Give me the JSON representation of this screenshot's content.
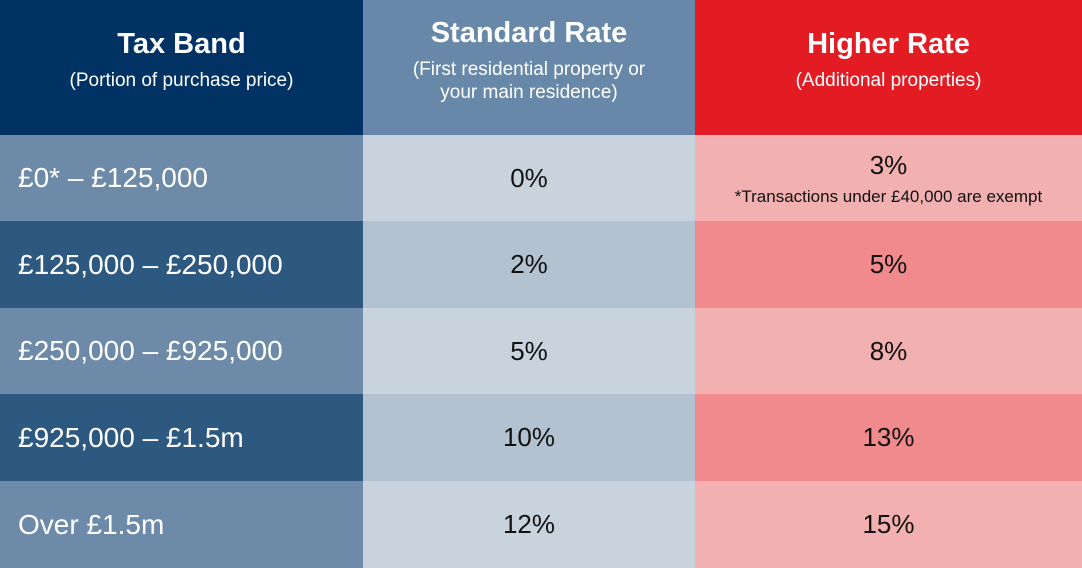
{
  "header": {
    "band": {
      "title": "Tax Band",
      "subtitle": "(Portion of purchase price)"
    },
    "standard": {
      "title": "Standard Rate",
      "subtitle_line1": "(First residential property or",
      "subtitle_line2": "your main residence)"
    },
    "higher": {
      "title": "Higher Rate",
      "subtitle": "(Additional properties)"
    }
  },
  "rows": [
    {
      "band": "£0* – £125,000",
      "standard": "0%",
      "higher": "3%",
      "note": "*Transactions under £40,000 are exempt"
    },
    {
      "band": "£125,000 – £250,000",
      "standard": "2%",
      "higher": "5%"
    },
    {
      "band": "£250,000 – £925,000",
      "standard": "5%",
      "higher": "8%"
    },
    {
      "band": "£925,000 – £1.5m",
      "standard": "10%",
      "higher": "13%"
    },
    {
      "band": "Over £1.5m",
      "standard": "12%",
      "higher": "15%"
    }
  ],
  "colors": {
    "band_header": "#003264",
    "standard_header": "#6788a8",
    "higher_header": "#e31b23"
  }
}
